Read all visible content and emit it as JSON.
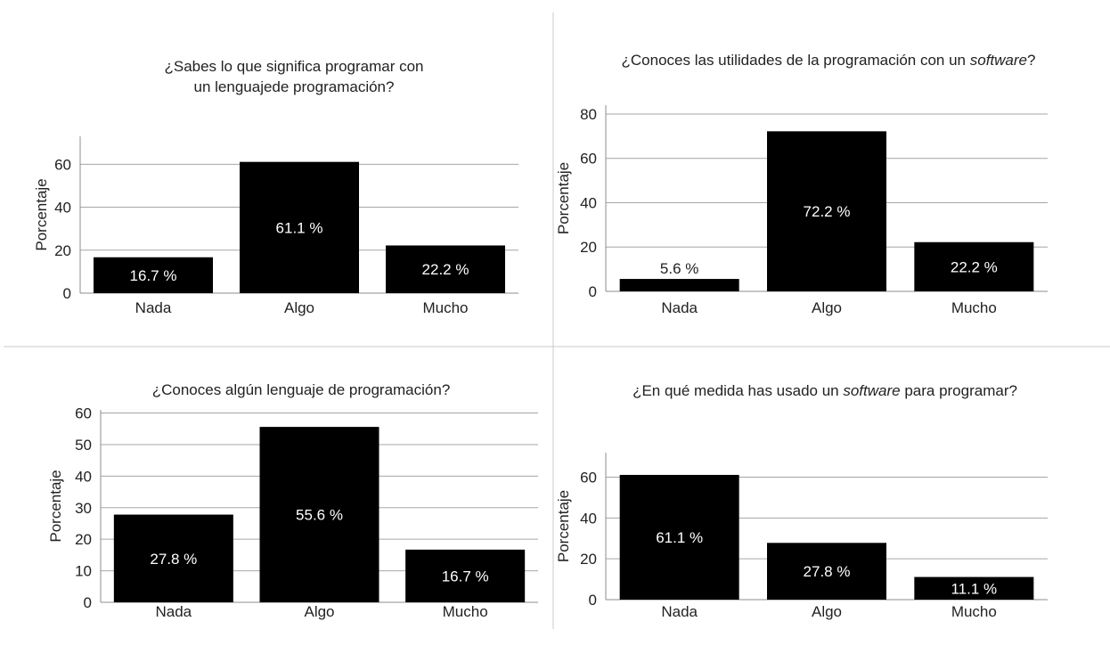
{
  "colors": {
    "bar": "#000000",
    "bar_label": "#ffffff",
    "grid": "#a6a6a6",
    "axis": "#8c8c8c",
    "text": "#222222",
    "divider": "#c8c8c8"
  },
  "chart_data": [
    {
      "type": "bar",
      "title_lines": [
        [
          {
            "text": "¿Sabes lo que significa programar con",
            "italic": false
          }
        ],
        [
          {
            "text": "un lenguajede programación?",
            "italic": false
          }
        ]
      ],
      "ylabel": "Porcentaje",
      "xlabel": "",
      "categories": [
        "Nada",
        "Algo",
        "Mucho"
      ],
      "values": [
        16.7,
        61.1,
        22.2
      ],
      "data_labels": [
        "16.7 %",
        "61.1 %",
        "22.2 %"
      ],
      "ylim": [
        0,
        73
      ],
      "yticks": [
        0,
        20,
        40,
        60
      ],
      "grid": true
    },
    {
      "type": "bar",
      "title_lines": [
        [
          {
            "text": "¿Conoces las utilidades de la programación con un ",
            "italic": false
          },
          {
            "text": "software",
            "italic": true
          },
          {
            "text": "?",
            "italic": false
          }
        ]
      ],
      "ylabel": "Porcentaje",
      "xlabel": "",
      "categories": [
        "Nada",
        "Algo",
        "Mucho"
      ],
      "values": [
        5.6,
        72.2,
        22.2
      ],
      "data_labels": [
        "5.6 %",
        "72.2 %",
        "22.2 %"
      ],
      "ylim": [
        0,
        84
      ],
      "yticks": [
        0,
        20,
        40,
        60,
        80
      ],
      "grid": true
    },
    {
      "type": "bar",
      "title_lines": [
        [
          {
            "text": "¿Conoces algún lenguaje de programación?",
            "italic": false
          }
        ]
      ],
      "ylabel": "Porcentaje",
      "xlabel": "",
      "categories": [
        "Nada",
        "Algo",
        "Mucho"
      ],
      "values": [
        27.8,
        55.6,
        16.7
      ],
      "data_labels": [
        "27.8 %",
        "55.6 %",
        "16.7 %"
      ],
      "ylim": [
        0,
        61
      ],
      "yticks": [
        0,
        10,
        20,
        30,
        40,
        50,
        60
      ],
      "grid": true
    },
    {
      "type": "bar",
      "title_lines": [
        [
          {
            "text": "¿En qué medida has usado un ",
            "italic": false
          },
          {
            "text": "software",
            "italic": true
          },
          {
            "text": " para programar?",
            "italic": false
          }
        ]
      ],
      "ylabel": "Porcentaje",
      "xlabel": "",
      "categories": [
        "Nada",
        "Algo",
        "Mucho"
      ],
      "values": [
        61.1,
        27.8,
        11.1
      ],
      "data_labels": [
        "61.1 %",
        "27.8 %",
        "11.1 %"
      ],
      "ylim": [
        0,
        72
      ],
      "yticks": [
        0,
        20,
        40,
        60
      ],
      "grid": true
    }
  ]
}
